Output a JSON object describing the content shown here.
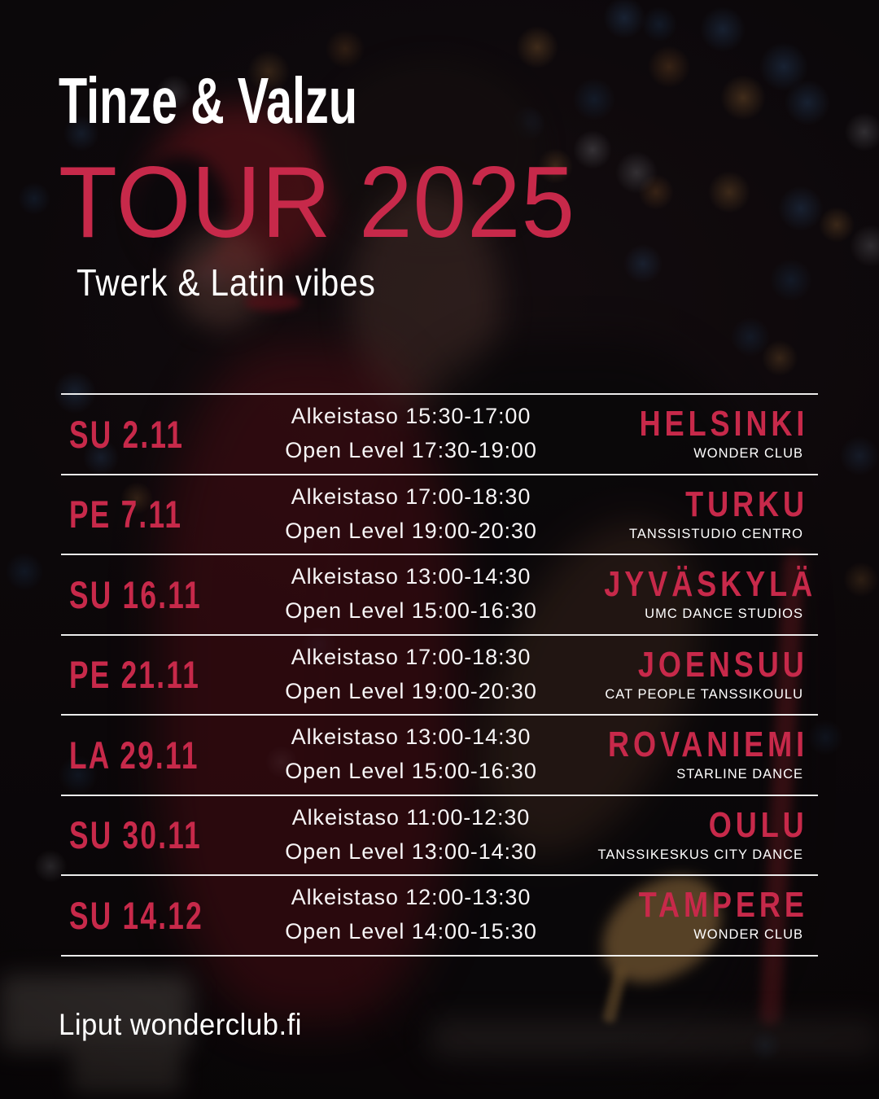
{
  "colors": {
    "accent": "#C7294A",
    "text": "#FFFFFF"
  },
  "header": {
    "artists": "Tinze & Valzu",
    "tour_title": "TOUR 2025",
    "subtitle": "Twerk & Latin vibes"
  },
  "schedule": [
    {
      "date": "SU 2.11",
      "level1": "Alkeistaso 15:30-17:00",
      "level2": "Open Level 17:30-19:00",
      "city": "HELSINKI",
      "venue": "WONDER CLUB"
    },
    {
      "date": "PE 7.11",
      "level1": "Alkeistaso 17:00-18:30",
      "level2": "Open Level 19:00-20:30",
      "city": "TURKU",
      "venue": "TANSSISTUDIO CENTRO"
    },
    {
      "date": "SU 16.11",
      "level1": "Alkeistaso 13:00-14:30",
      "level2": "Open Level 15:00-16:30",
      "city": "JYVÄSKYLÄ",
      "venue": "UMC DANCE STUDIOS"
    },
    {
      "date": "PE 21.11",
      "level1": "Alkeistaso 17:00-18:30",
      "level2": "Open Level 19:00-20:30",
      "city": "JOENSUU",
      "venue": "CAT PEOPLE TANSSIKOULU"
    },
    {
      "date": "LA 29.11",
      "level1": "Alkeistaso 13:00-14:30",
      "level2": "Open Level 15:00-16:30",
      "city": "ROVANIEMI",
      "venue": "STARLINE DANCE"
    },
    {
      "date": "SU 30.11",
      "level1": "Alkeistaso 11:00-12:30",
      "level2": "Open Level 13:00-14:30",
      "city": "OULU",
      "venue": "TANSSIKESKUS CITY DANCE"
    },
    {
      "date": "SU 14.12",
      "level1": "Alkeistaso 12:00-13:30",
      "level2": "Open Level 14:00-15:30",
      "city": "TAMPERE",
      "venue": "WONDER CLUB"
    }
  ],
  "footer": {
    "tickets": "Liput wonderclub.fi"
  }
}
